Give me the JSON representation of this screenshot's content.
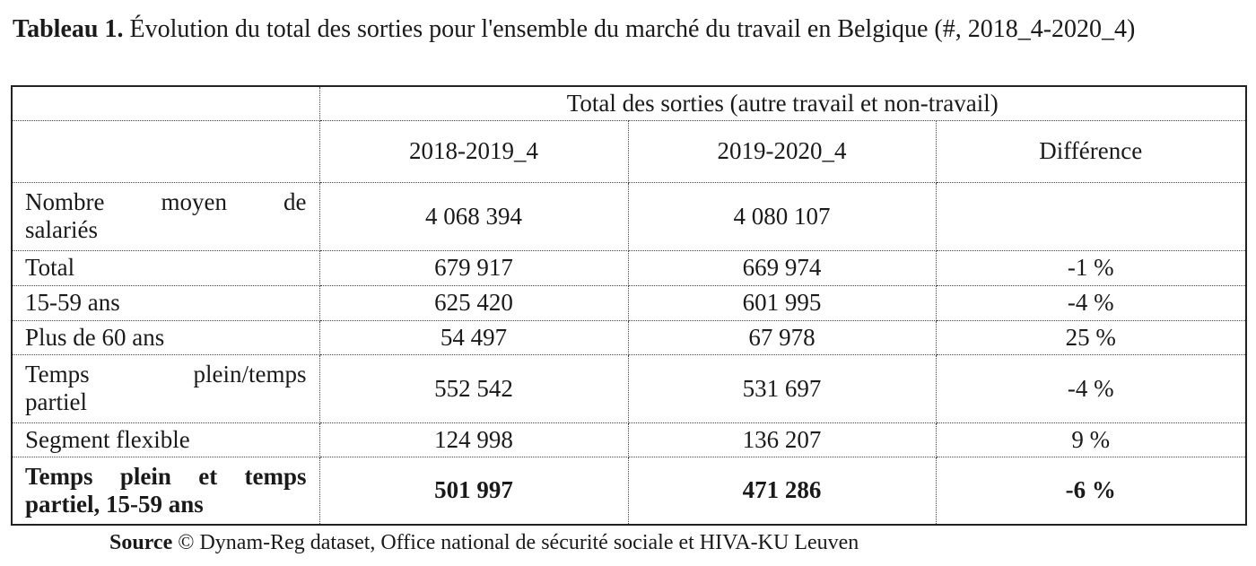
{
  "title": {
    "label": "Tableau 1.",
    "text": "Évolution du total des sorties pour l'ensemble du marché du travail en Belgique (#, 2018_4-2020_4)"
  },
  "table": {
    "group_header": "Total des sorties (autre travail et non-travail)",
    "columns": [
      "2018-2019_4",
      "2019-2020_4",
      "Différence"
    ],
    "rows": [
      {
        "label_lines": [
          "Nombre moyen de",
          "salariés"
        ],
        "values": [
          "4 068 394",
          "4 080 107",
          ""
        ]
      },
      {
        "label_lines": [
          "Total"
        ],
        "values": [
          "679 917",
          "669 974",
          "-1 %"
        ]
      },
      {
        "label_lines": [
          "15-59 ans"
        ],
        "values": [
          "625 420",
          "601 995",
          "-4 %"
        ]
      },
      {
        "label_lines": [
          "Plus de 60 ans"
        ],
        "values": [
          "54 497",
          "67 978",
          "25 %"
        ]
      },
      {
        "label_lines": [
          "Temps plein/temps",
          "partiel"
        ],
        "values": [
          "552 542",
          "531 697",
          "-4 %"
        ]
      },
      {
        "label_lines": [
          "Segment flexible"
        ],
        "values": [
          "124 998",
          "136 207",
          "9 %"
        ]
      },
      {
        "label_lines": [
          "Temps plein et temps",
          "partiel, 15-59 ans"
        ],
        "values": [
          "501 997",
          "471 286",
          "-6 %"
        ],
        "bold": true
      }
    ]
  },
  "source": {
    "label": "Source",
    "text": "© Dynam-Reg dataset, Office national de sécurité sociale et HIVA-KU Leuven"
  }
}
